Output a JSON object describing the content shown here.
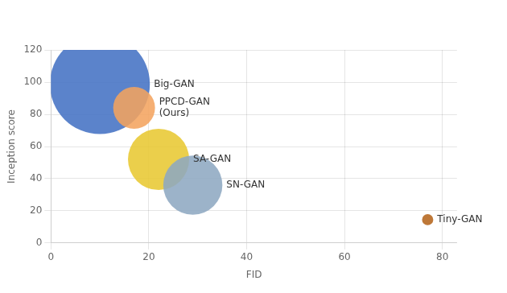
{
  "chart_data": {
    "type": "bubble",
    "x": [
      10.0,
      17.0,
      22.0,
      29.0,
      77.0
    ],
    "values": [
      98.8,
      84.0,
      52.0,
      36.0,
      14.5
    ],
    "sizes": [
      8000,
      1400,
      3000,
      2800,
      100
    ],
    "colors": [
      "#4472C4",
      "#F4A460",
      "#E8C832",
      "#8EA9C1",
      "#B5651D"
    ],
    "annotations": [
      "Big-GAN",
      "PPCD-GAN\n(Ours)",
      "SA-GAN",
      "SN-GAN",
      "Tiny-GAN"
    ],
    "xlabel": "FID",
    "ylabel": "Inception score",
    "xlim": [
      0,
      83
    ],
    "ylim": [
      0,
      120
    ],
    "xticks": [
      0,
      20,
      40,
      60,
      80
    ],
    "yticks": [
      0,
      20,
      40,
      60,
      80,
      100,
      120
    ],
    "grid": true
  }
}
